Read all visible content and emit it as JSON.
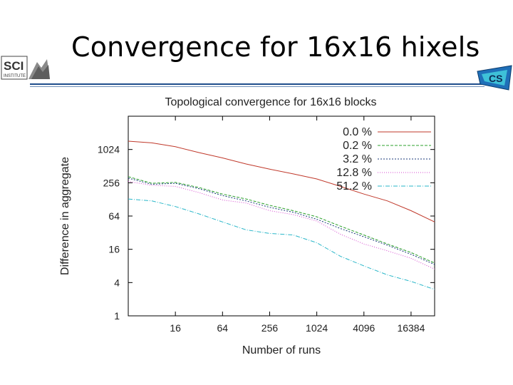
{
  "slide": {
    "title": "Convergence for 16x16 hixels",
    "logo_left_text": "SCI",
    "logo_left_subtext": "INSTITUTE",
    "logo_right_text": "CS"
  },
  "chart_data": {
    "type": "line",
    "title": "Topological convergence for 16x16 blocks",
    "xlabel": "Number of runs",
    "ylabel": "Difference in aggregate",
    "x_scale": "log2",
    "y_scale": "log2",
    "xlim": [
      4,
      32768
    ],
    "ylim": [
      1,
      4096
    ],
    "x_ticks": [
      16,
      64,
      256,
      1024,
      4096,
      16384
    ],
    "y_ticks": [
      1,
      4,
      16,
      64,
      256,
      1024
    ],
    "legend_position": "top-right",
    "grid": false,
    "series": [
      {
        "name": "0.0 %",
        "color": "#c0392b",
        "dash": "none",
        "x": [
          4,
          8,
          16,
          32,
          64,
          128,
          256,
          512,
          1024,
          2048,
          4096,
          8192,
          16384,
          32768
        ],
        "y": [
          1450,
          1350,
          1150,
          900,
          720,
          560,
          450,
          370,
          300,
          220,
          160,
          120,
          80,
          50
        ]
      },
      {
        "name": "0.2 %",
        "color": "#2ca02c",
        "dash": "4 2",
        "x": [
          4,
          8,
          16,
          32,
          64,
          128,
          256,
          512,
          1024,
          2048,
          4096,
          8192,
          16384,
          32768
        ],
        "y": [
          330,
          250,
          260,
          210,
          160,
          130,
          100,
          80,
          62,
          42,
          29,
          20,
          14,
          9
        ]
      },
      {
        "name": "3.2 %",
        "color": "#1a3a7a",
        "dash": "2 2",
        "x": [
          4,
          8,
          16,
          32,
          64,
          128,
          256,
          512,
          1024,
          2048,
          4096,
          8192,
          16384,
          32768
        ],
        "y": [
          310,
          240,
          250,
          200,
          150,
          120,
          92,
          75,
          56,
          38,
          27,
          19,
          13,
          8.5
        ]
      },
      {
        "name": "12.8 %",
        "color": "#d64ad0",
        "dash": "1 2",
        "x": [
          4,
          8,
          16,
          32,
          64,
          128,
          256,
          512,
          1024,
          2048,
          4096,
          8192,
          16384,
          32768
        ],
        "y": [
          270,
          230,
          220,
          170,
          125,
          110,
          80,
          68,
          52,
          30,
          20,
          15,
          11,
          7
        ]
      },
      {
        "name": "51.2 %",
        "color": "#2ab7c9",
        "dash": "6 2 1 2",
        "x": [
          4,
          8,
          16,
          32,
          64,
          128,
          256,
          512,
          1024,
          2048,
          4096,
          8192,
          16384,
          32768
        ],
        "y": [
          130,
          120,
          95,
          70,
          50,
          36,
          31,
          29,
          21,
          12,
          8,
          5.5,
          4.2,
          3
        ]
      }
    ]
  }
}
